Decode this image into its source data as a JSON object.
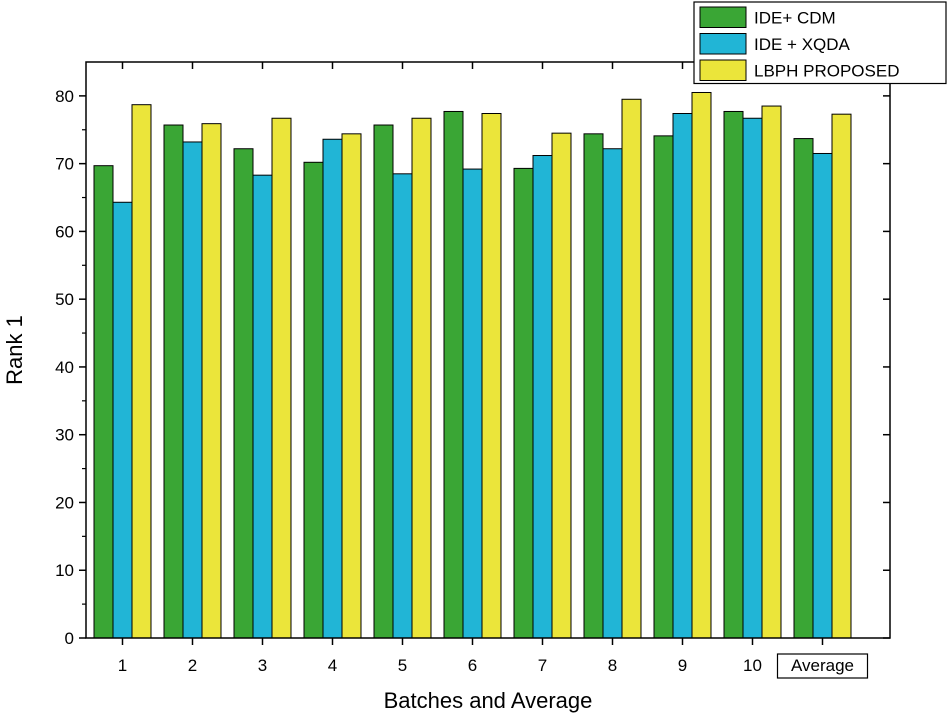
{
  "chart_data": {
    "type": "bar",
    "title": "",
    "xlabel": "Batches and Average",
    "ylabel": "Rank 1",
    "categories": [
      "1",
      "2",
      "3",
      "4",
      "5",
      "6",
      "7",
      "8",
      "9",
      "10",
      "Average"
    ],
    "series": [
      {
        "name": "IDE+ CDM",
        "color": "#3aa635",
        "values": [
          69.7,
          75.7,
          72.2,
          70.2,
          75.7,
          77.7,
          69.3,
          74.4,
          74.1,
          77.7,
          73.7
        ]
      },
      {
        "name": "IDE + XQDA",
        "color": "#21b5d6",
        "values": [
          64.3,
          73.2,
          68.3,
          73.6,
          68.5,
          69.2,
          71.2,
          72.2,
          77.4,
          76.7,
          71.5
        ]
      },
      {
        "name": "LBPH PROPOSED",
        "color": "#ebe53a",
        "values": [
          78.7,
          75.9,
          76.7,
          74.4,
          76.7,
          77.4,
          74.5,
          79.5,
          80.5,
          78.5,
          77.3
        ]
      }
    ],
    "ylim": [
      0,
      85
    ],
    "yticks": [
      0,
      10,
      20,
      30,
      40,
      50,
      60,
      70,
      80
    ],
    "grid": false,
    "legend_position": "top-right",
    "boxed_category_label": "Average"
  }
}
